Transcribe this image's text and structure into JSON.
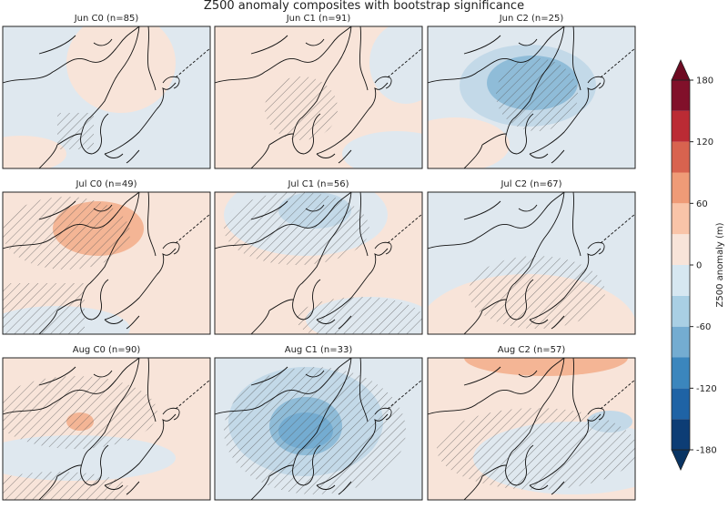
{
  "title": "Z500 anomaly composites with bootstrap significance",
  "panels": [
    {
      "title": "Jun C0 (n=85)"
    },
    {
      "title": "Jun C1 (n=91)"
    },
    {
      "title": "Jun C2 (n=25)"
    },
    {
      "title": "Jul C0 (n=49)"
    },
    {
      "title": "Jul C1 (n=56)"
    },
    {
      "title": "Jul C2 (n=67)"
    },
    {
      "title": "Aug C0 (n=90)"
    },
    {
      "title": "Aug C1 (n=33)"
    },
    {
      "title": "Aug C2 (n=57)"
    }
  ],
  "colorbar": {
    "label": "Z500 anomaly (m)",
    "lim": [
      -180,
      180
    ],
    "ticks": [
      -180,
      -120,
      -60,
      0,
      60,
      120,
      180
    ],
    "bounds": [
      -180,
      -150,
      -120,
      -90,
      -60,
      -30,
      0,
      30,
      60,
      90,
      120,
      150,
      180
    ],
    "colors": [
      "#0d3d75",
      "#1f63a5",
      "#3b86bd",
      "#74acd1",
      "#a9cfe4",
      "#d6e7f1",
      "#f8e4d9",
      "#f9c4a8",
      "#ef9b77",
      "#d8634f",
      "#bb2b34",
      "#81102a"
    ],
    "under_color": "#093463",
    "over_color": "#6e0b22"
  }
}
